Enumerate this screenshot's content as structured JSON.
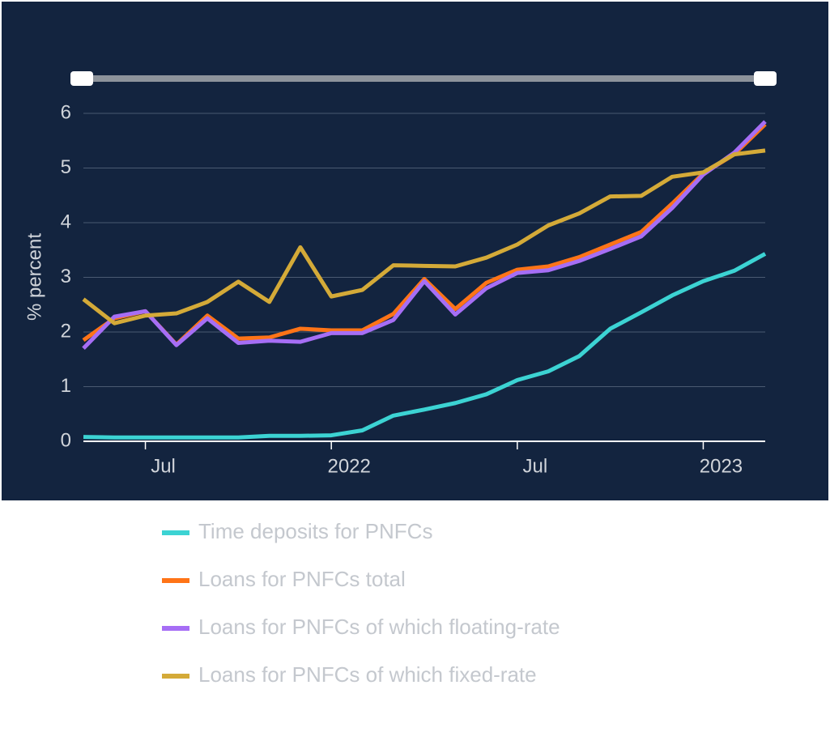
{
  "chart_data": {
    "type": "line",
    "y_label": "% percent",
    "categories": [
      null,
      null,
      "Jul",
      null,
      null,
      null,
      null,
      null,
      "2022",
      null,
      null,
      null,
      null,
      null,
      "Jul",
      null,
      null,
      null,
      null,
      null,
      "2023",
      null,
      null
    ],
    "series": [
      {
        "name": "Time deposits for PNFCs",
        "color": "#3cd3d3",
        "values": [
          0.08,
          0.07,
          0.07,
          0.07,
          0.07,
          0.07,
          0.1,
          0.1,
          0.11,
          0.2,
          0.47,
          0.58,
          0.7,
          0.86,
          1.12,
          1.28,
          1.56,
          2.06,
          2.36,
          2.67,
          2.93,
          3.12,
          3.43
        ]
      },
      {
        "name": "Loans for PNFCs total",
        "color": "#ff7417",
        "values": [
          1.85,
          2.25,
          2.38,
          1.77,
          2.3,
          1.88,
          1.9,
          2.06,
          2.03,
          2.03,
          2.33,
          2.97,
          2.42,
          2.9,
          3.14,
          3.2,
          3.37,
          3.6,
          3.83,
          4.35,
          4.9,
          5.25,
          5.8
        ]
      },
      {
        "name": "Loans for PNFCs of which floating-rate",
        "color": "#a66ef5",
        "values": [
          1.7,
          2.28,
          2.38,
          1.76,
          2.25,
          1.8,
          1.84,
          1.82,
          1.98,
          1.98,
          2.22,
          2.93,
          2.32,
          2.8,
          3.08,
          3.13,
          3.3,
          3.52,
          3.75,
          4.27,
          4.88,
          5.28,
          5.85
        ]
      },
      {
        "name": "Loans for PNFCs of which fixed-rate",
        "color": "#d4aa38",
        "values": [
          2.6,
          2.16,
          2.3,
          2.34,
          2.55,
          2.92,
          2.55,
          3.55,
          2.65,
          2.77,
          3.22,
          3.21,
          3.2,
          3.36,
          3.6,
          3.95,
          4.17,
          4.48,
          4.49,
          4.84,
          4.92,
          5.25,
          5.32
        ]
      }
    ],
    "ylim": [
      0,
      6
    ],
    "yticks": [
      0,
      1,
      2,
      3,
      4,
      5,
      6
    ],
    "grid": true
  }
}
